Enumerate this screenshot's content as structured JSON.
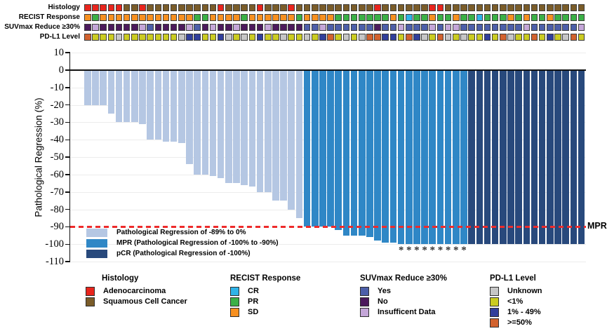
{
  "tracks": {
    "rows": [
      {
        "key": "histology",
        "label": "Histology"
      },
      {
        "key": "recist",
        "label": "RECIST Response"
      },
      {
        "key": "suvmax",
        "label": "SUVmax Reduce ≥30%"
      },
      {
        "key": "pdl1",
        "label": "PD-L1 Level"
      }
    ],
    "histology": [
      "A",
      "A",
      "A",
      "A",
      "A",
      "S",
      "S",
      "A",
      "S",
      "S",
      "S",
      "S",
      "S",
      "S",
      "S",
      "S",
      "S",
      "A",
      "S",
      "S",
      "S",
      "S",
      "A",
      "S",
      "S",
      "S",
      "A",
      "S",
      "S",
      "S",
      "S",
      "S",
      "S",
      "S",
      "S",
      "S",
      "S",
      "A",
      "S",
      "S",
      "S",
      "S",
      "S",
      "S",
      "A",
      "A",
      "S",
      "S",
      "S",
      "S",
      "S",
      "S",
      "S",
      "S",
      "S",
      "S",
      "S",
      "S",
      "S",
      "S",
      "S",
      "S",
      "S",
      "S"
    ],
    "recist": [
      "O",
      "G",
      "O",
      "O",
      "O",
      "O",
      "O",
      "O",
      "O",
      "O",
      "O",
      "O",
      "O",
      "O",
      "G",
      "G",
      "O",
      "O",
      "O",
      "O",
      "G",
      "O",
      "O",
      "O",
      "O",
      "O",
      "O",
      "G",
      "O",
      "O",
      "O",
      "O",
      "G",
      "G",
      "G",
      "G",
      "G",
      "G",
      "G",
      "O",
      "G",
      "C",
      "G",
      "G",
      "O",
      "G",
      "G",
      "O",
      "G",
      "G",
      "C",
      "G",
      "G",
      "G",
      "O",
      "G",
      "O",
      "G",
      "G",
      "O",
      "G",
      "G",
      "G",
      "G"
    ],
    "suvmax": [
      "N",
      "I",
      "N",
      "N",
      "N",
      "N",
      "N",
      "I",
      "Y",
      "N",
      "N",
      "N",
      "N",
      "I",
      "Y",
      "N",
      "I",
      "N",
      "N",
      "I",
      "N",
      "N",
      "N",
      "I",
      "N",
      "N",
      "N",
      "N",
      "Y",
      "Y",
      "I",
      "Y",
      "Y",
      "Y",
      "Y",
      "Y",
      "Y",
      "N",
      "Y",
      "Y",
      "I",
      "Y",
      "Y",
      "Y",
      "I",
      "Y",
      "I",
      "I",
      "Y",
      "Y",
      "Y",
      "Y",
      "Y",
      "Y",
      "Y",
      "Y",
      "I",
      "Y",
      "Y",
      "Y",
      "Y",
      "Y",
      "Y",
      "I"
    ],
    "pdl1": [
      "H",
      "L",
      "L",
      "L",
      "U",
      "L",
      "L",
      "L",
      "L",
      "L",
      "L",
      "L",
      "U",
      "M",
      "M",
      "L",
      "L",
      "M",
      "U",
      "L",
      "U",
      "L",
      "M",
      "L",
      "L",
      "U",
      "L",
      "L",
      "U",
      "L",
      "M",
      "H",
      "L",
      "U",
      "L",
      "U",
      "H",
      "H",
      "M",
      "M",
      "L",
      "H",
      "M",
      "U",
      "L",
      "H",
      "U",
      "L",
      "U",
      "L",
      "L",
      "M",
      "L",
      "H",
      "U",
      "L",
      "L",
      "H",
      "L",
      "M",
      "L",
      "U",
      "H",
      "L"
    ],
    "palettes": {
      "histology": {
        "A": "#e8251d",
        "S": "#7a5c29"
      },
      "recist": {
        "C": "#2fb3e8",
        "G": "#3bb046",
        "O": "#f79020"
      },
      "suvmax": {
        "Y": "#4d5fa9",
        "N": "#4c1a5c",
        "I": "#c4a6d8"
      },
      "pdl1": {
        "U": "#c6c6c6",
        "L": "#cbcc21",
        "M": "#313f9b",
        "H": "#d2622e"
      }
    }
  },
  "chart_data": {
    "type": "bar",
    "title": "",
    "xlabel": "",
    "ylabel": "Pathological Regression (%)",
    "ylim": [
      -110,
      10
    ],
    "yticks": [
      10,
      0,
      -10,
      -20,
      -30,
      -40,
      -50,
      -60,
      -70,
      -80,
      -90,
      -100,
      -110
    ],
    "grid": "horizontal",
    "n_patients": 64,
    "values": [
      -20,
      -20,
      -20,
      -25,
      -30,
      -30,
      -30,
      -31,
      -40,
      -40,
      -41,
      -41,
      -42,
      -54,
      -60,
      -60,
      -61,
      -62,
      -65,
      -65,
      -66,
      -67,
      -70,
      -70,
      -75,
      -75,
      -80,
      -85,
      -90,
      -90,
      -90,
      -90,
      -92,
      -95,
      -95,
      -95,
      -96,
      -98,
      -99,
      -99,
      -100,
      -100,
      -100,
      -100,
      -100,
      -100,
      -100,
      -100,
      -100,
      -100,
      -100,
      -100,
      -100,
      -100,
      -100,
      -100,
      -100,
      -100,
      -100,
      -100,
      -100,
      -100,
      -100,
      -100
    ],
    "classes": [
      "R",
      "R",
      "R",
      "R",
      "R",
      "R",
      "R",
      "R",
      "R",
      "R",
      "R",
      "R",
      "R",
      "R",
      "R",
      "R",
      "R",
      "R",
      "R",
      "R",
      "R",
      "R",
      "R",
      "R",
      "R",
      "R",
      "R",
      "R",
      "M",
      "M",
      "M",
      "M",
      "M",
      "M",
      "M",
      "M",
      "M",
      "M",
      "M",
      "M",
      "M",
      "M",
      "M",
      "M",
      "M",
      "M",
      "M",
      "M",
      "M",
      "P",
      "P",
      "P",
      "P",
      "P",
      "P",
      "P",
      "P",
      "P",
      "P",
      "P",
      "P",
      "P",
      "P",
      "P"
    ],
    "class_colors": {
      "R": "#b5c7e3",
      "M": "#2f87c6",
      "P": "#28497c"
    },
    "asterisk_columns": [
      41,
      42,
      43,
      44,
      45,
      46,
      47,
      48,
      49
    ],
    "asterisk_glyph": "*",
    "reference_line": {
      "value": -90,
      "label": "MPR",
      "color": "#ee2b2b",
      "style": "dashed"
    }
  },
  "plot_legend": [
    {
      "class": "R",
      "label": "Pathological Regression of -89% to 0%"
    },
    {
      "class": "M",
      "label": "MPR (Pathological Regression of -100% to -90%)"
    },
    {
      "class": "P",
      "label": "pCR (Pathological Regression of -100%)"
    }
  ],
  "bottom_legend": [
    {
      "title": "Histology",
      "items": [
        {
          "color": "#e8251d",
          "label": "Adenocarcinoma"
        },
        {
          "color": "#7a5c29",
          "label": "Squamous Cell Cancer"
        }
      ]
    },
    {
      "title": "RECIST Response",
      "items": [
        {
          "color": "#2fb3e8",
          "label": "CR"
        },
        {
          "color": "#3bb046",
          "label": "PR"
        },
        {
          "color": "#f79020",
          "label": "SD"
        }
      ]
    },
    {
      "title": "SUVmax Reduce ≥30%",
      "items": [
        {
          "color": "#4d5fa9",
          "label": "Yes"
        },
        {
          "color": "#4c1a5c",
          "label": "No"
        },
        {
          "color": "#c4a6d8",
          "label": "Insufficent Data"
        }
      ]
    },
    {
      "title": "PD-L1 Level",
      "items": [
        {
          "color": "#c6c6c6",
          "label": "Unknown"
        },
        {
          "color": "#cbcc21",
          "label": "<1%"
        },
        {
          "color": "#313f9b",
          "label": "1% - 49%"
        },
        {
          "color": "#d2622e",
          "label": ">=50%"
        }
      ]
    }
  ]
}
